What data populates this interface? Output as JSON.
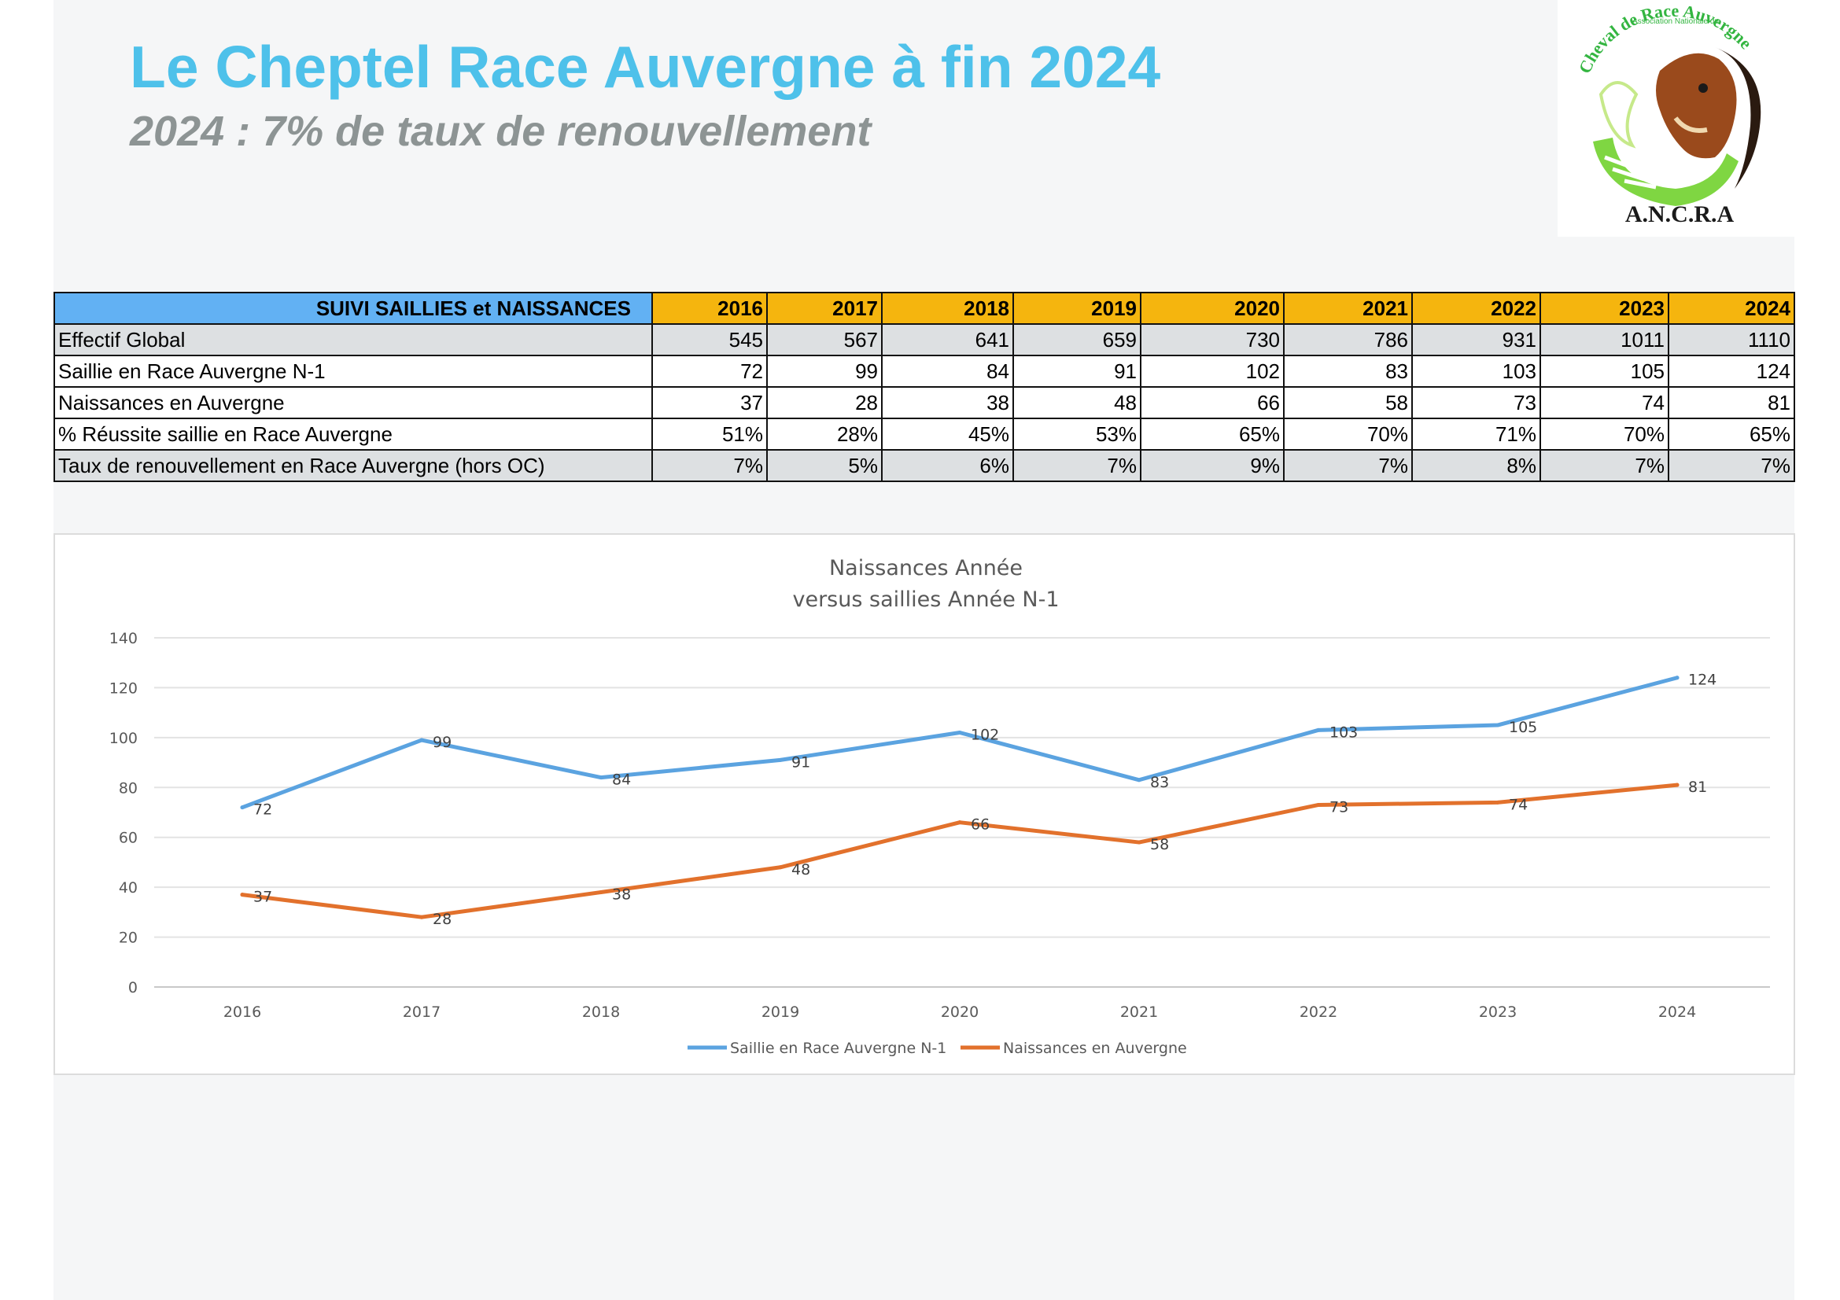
{
  "header": {
    "title": "Le Cheptel Race Auvergne à fin 2024",
    "subtitle": "2024 : 7% de taux de renouvellement"
  },
  "logo": {
    "text_top": "Association Nationale du",
    "text_arc": "Cheval de Race Auvergne",
    "text_bottom": "A.N.C.R.A"
  },
  "table": {
    "header_label": "SUIVI SAILLIES et NAISSANCES",
    "years": [
      "2016",
      "2017",
      "2018",
      "2019",
      "2020",
      "2021",
      "2022",
      "2023",
      "2024"
    ],
    "rows": [
      {
        "label": "Effectif Global",
        "values": [
          "545",
          "567",
          "641",
          "659",
          "730",
          "786",
          "931",
          "1011",
          "1110"
        ]
      },
      {
        "label": "Saillie en Race Auvergne N-1",
        "values": [
          "72",
          "99",
          "84",
          "91",
          "102",
          "83",
          "103",
          "105",
          "124"
        ]
      },
      {
        "label": "Naissances en Auvergne",
        "values": [
          "37",
          "28",
          "38",
          "48",
          "66",
          "58",
          "73",
          "74",
          "81"
        ]
      },
      {
        "label": "% Réussite saillie en Race Auvergne",
        "values": [
          "51%",
          "28%",
          "45%",
          "53%",
          "65%",
          "70%",
          "71%",
          "70%",
          "65%"
        ]
      },
      {
        "label": "Taux de renouvellement en Race Auvergne (hors OC)",
        "values": [
          "7%",
          "5%",
          "6%",
          "7%",
          "9%",
          "7%",
          "8%",
          "7%",
          "7%"
        ]
      }
    ]
  },
  "chart_data": {
    "type": "line",
    "title_line1": "Naissances Année",
    "title_line2": "versus saillies Année N-1",
    "x": [
      "2016",
      "2017",
      "2018",
      "2019",
      "2020",
      "2021",
      "2022",
      "2023",
      "2024"
    ],
    "ylim": [
      0,
      140
    ],
    "yticks": [
      0,
      20,
      40,
      60,
      80,
      100,
      120,
      140
    ],
    "grid": true,
    "legend_position": "bottom",
    "series": [
      {
        "name": "Saillie en Race Auvergne N-1",
        "color": "#5ba3e0",
        "values": [
          72,
          99,
          84,
          91,
          102,
          83,
          103,
          105,
          124
        ]
      },
      {
        "name": "Naissances en Auvergne",
        "color": "#e2712c",
        "values": [
          37,
          28,
          38,
          48,
          66,
          58,
          73,
          74,
          81
        ]
      }
    ]
  }
}
